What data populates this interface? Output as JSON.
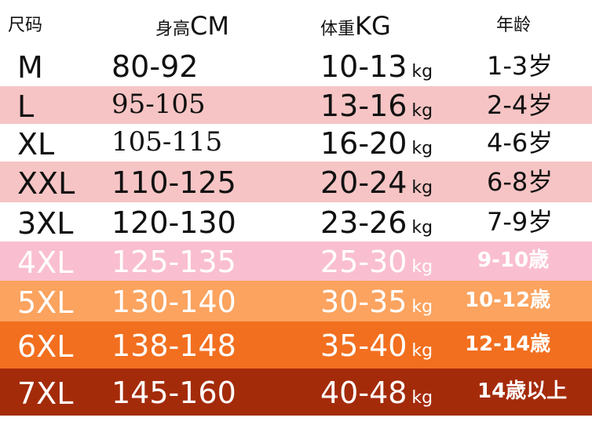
{
  "headers": {
    "size": "尺码",
    "height_cn": "身高",
    "height_unit": "CM",
    "weight_cn": "体重",
    "weight_unit": "KG",
    "age": "年龄"
  },
  "weight_unit_suffix": "kg",
  "rows": [
    {
      "size": "M",
      "height": "80-92",
      "weight": "10-13",
      "age": "1-3岁",
      "bg": "#ffffff",
      "fg": "#111111",
      "serif": false,
      "age_bold": false
    },
    {
      "size": "L",
      "height": "95-105",
      "weight": "13-16",
      "age": "2-4岁",
      "bg": "#f6c4c4",
      "fg": "#111111",
      "serif": true,
      "age_bold": false
    },
    {
      "size": "XL",
      "height": "105-115",
      "weight": "16-20",
      "age": "4-6岁",
      "bg": "#ffffff",
      "fg": "#111111",
      "serif": true,
      "age_bold": false
    },
    {
      "size": "XXL",
      "height": "110-125",
      "weight": "20-24",
      "age": "6-8岁",
      "bg": "#f6c4c4",
      "fg": "#111111",
      "serif": false,
      "age_bold": false
    },
    {
      "size": "3XL",
      "height": "120-130",
      "weight": "23-26",
      "age": "7-9岁",
      "bg": "#ffffff",
      "fg": "#111111",
      "serif": false,
      "age_bold": false
    },
    {
      "size": "4XL",
      "height": "125-135",
      "weight": "25-30",
      "age": "9-10歳",
      "bg": "#f9bfd0",
      "fg": "#ffffff",
      "serif": false,
      "age_bold": true
    },
    {
      "size": "5XL",
      "height": "130-140",
      "weight": "30-35",
      "age": "10-12歳",
      "bg": "#fba35f",
      "fg": "#ffffff",
      "serif": false,
      "age_bold": true
    },
    {
      "size": "6XL",
      "height": "138-148",
      "weight": "35-40",
      "age": "12-14歳",
      "bg": "#f26f1f",
      "fg": "#ffffff",
      "serif": false,
      "age_bold": true
    },
    {
      "size": "7XL",
      "height": "145-160",
      "weight": "40-48",
      "age": "14歳以上",
      "bg": "#a42b0a",
      "fg": "#ffffff",
      "serif": false,
      "age_bold": true
    }
  ]
}
